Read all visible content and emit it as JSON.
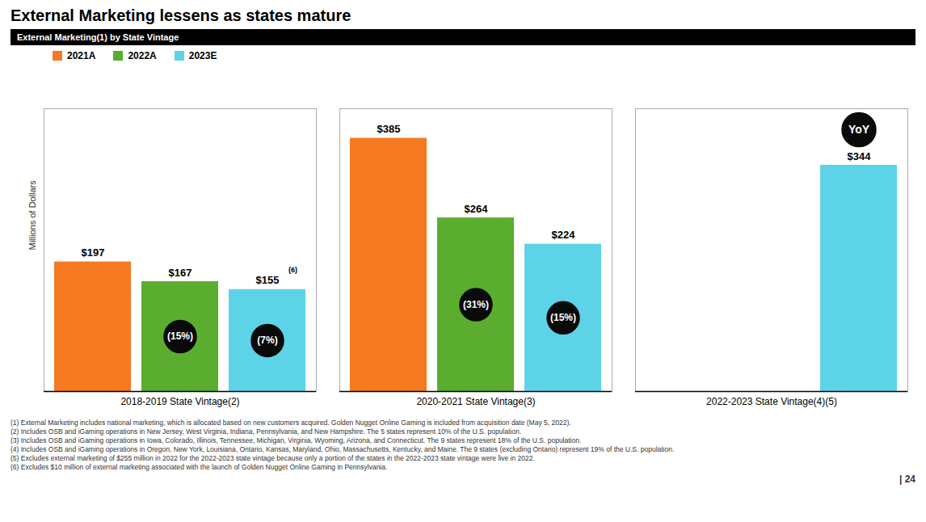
{
  "chart_data": {
    "type": "bar",
    "title": "External Marketing lessens as states mature",
    "subtitle": "External Marketing(1) by State Vintage",
    "ylabel": "Millions of Dollars",
    "categories": [
      "2018-2019 State Vintage(2)",
      "2020-2021 State Vintage(3)",
      "2022-2023 State Vintage(4)(5)"
    ],
    "series": [
      {
        "name": "2021A",
        "color": "#F47920",
        "values": [
          197,
          385,
          null
        ],
        "value_labels": [
          "$197",
          "$385",
          null
        ]
      },
      {
        "name": "2022A",
        "color": "#5BAD2F",
        "values": [
          167,
          264,
          null
        ],
        "value_labels": [
          "$167",
          "$264",
          null
        ]
      },
      {
        "name": "2023E",
        "color": "#5DD3E8",
        "values": [
          155,
          224,
          344
        ],
        "value_labels": [
          "$155",
          "$224",
          "$344"
        ]
      }
    ],
    "ylim": [
      0,
      430
    ],
    "yticks": [],
    "tick_labels": "x",
    "grid": false,
    "legend": "top-left",
    "data_labels": true,
    "annotations": [
      {
        "text": "(15%)",
        "category": "2018-2019 State Vintage(2)",
        "series": "2022A",
        "position": "inside"
      },
      {
        "text": "(7%)",
        "category": "2018-2019 State Vintage(2)",
        "series": "2023E",
        "position": "inside"
      },
      {
        "text": "(31%)",
        "category": "2020-2021 State Vintage(3)",
        "series": "2022A",
        "position": "inside"
      },
      {
        "text": "(15%)",
        "category": "2020-2021 State Vintage(3)",
        "series": "2023E",
        "position": "inside"
      },
      {
        "text": "(6)",
        "category": "2018-2019 State Vintage(2)",
        "series": "2023E",
        "position": "superscript"
      },
      {
        "text": "YoY",
        "category": "2022-2023 State Vintage(4)(5)",
        "series": "2023E",
        "position": "above"
      }
    ],
    "footnotes": [
      "(1)  External Marketing includes national marketing, which is allocated based on new customers acquired. Golden Nugget Online Gaming is included from acquisition date (May 5, 2022).",
      "(2)  Includes OSB and iGaming operations in New Jersey, West Virginia, Indiana, Pennsylvania, and New Hampshire. The 5 states represent 10% of the U.S. population.",
      "(3)  Includes OSB and iGaming operations in Iowa, Colorado, Illinois, Tennessee, Michigan, Virginia, Wyoming, Arizona, and Connecticut. The 9 states represent 18% of the U.S. population.",
      "(4)  Includes OSB and iGaming operations in Oregon, New York, Louisiana, Ontario, Kansas, Maryland, Ohio, Massachusetts, Kentucky, and Maine. The 9 states (excluding Ontario) represent 19% of the U.S. population.",
      "(5)  Excludes external marketing of $255 million in 2022 for the 2022-2023 state vintage because only a portion of the states in the 2022-2023 state vintage were live in 2022.",
      "(6)  Excludes $10 million of external marketing associated with the launch of Golden Nugget Online Gaming in Pennsylvania."
    ],
    "page_number": "| 24"
  }
}
